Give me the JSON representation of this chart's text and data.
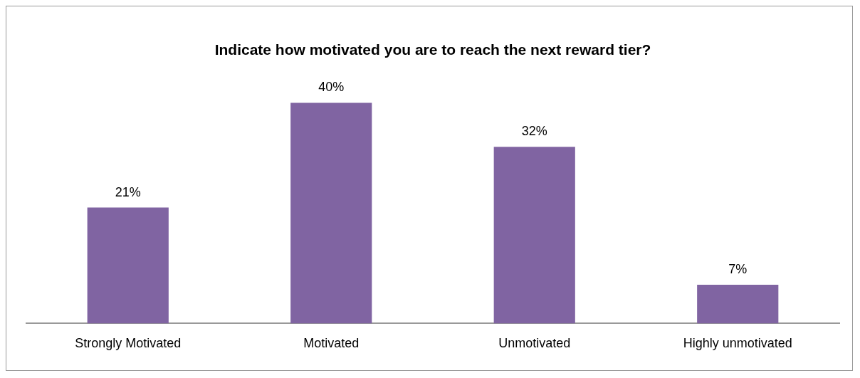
{
  "chart_data": {
    "type": "bar",
    "title": "Indicate how motivated you are to reach the next reward tier?",
    "categories": [
      "Strongly Motivated",
      "Motivated",
      "Unmotivated",
      "Highly unmotivated"
    ],
    "values": [
      21,
      40,
      32,
      7
    ],
    "value_labels": [
      "21%",
      "40%",
      "32%",
      "7%"
    ],
    "color": "#8064a2",
    "legend": false,
    "grid": false
  }
}
